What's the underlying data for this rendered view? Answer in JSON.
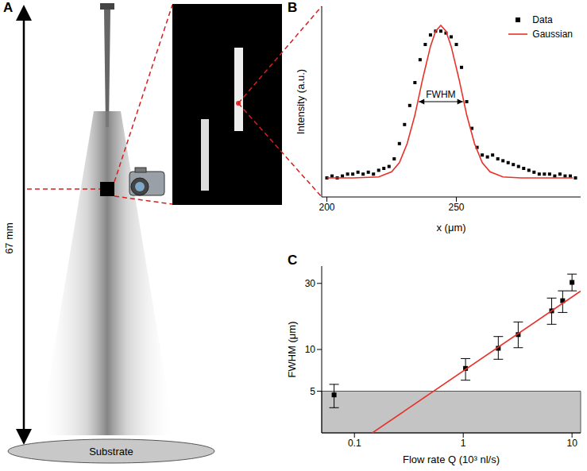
{
  "chart_data": [
    {
      "type": "diagram",
      "panel": "A",
      "annotations": [
        "67 mm",
        "Substrate"
      ]
    },
    {
      "type": "scatter",
      "panel": "B",
      "x_label": "x (μm)",
      "y_label": "Intensity (a.u.)",
      "xlim": [
        198,
        298
      ],
      "ylim": [
        0,
        1
      ],
      "xticks": [
        200,
        250
      ],
      "yticks": [
        0.2,
        0.4,
        0.6,
        0.8
      ],
      "tick_labels": "x",
      "legend": "upper right",
      "annotations": [
        {
          "text": "FWHM",
          "x": [
            235.5,
            252.5
          ],
          "y": 0.5
        }
      ],
      "series": [
        {
          "name": "Data",
          "type": "scatter",
          "marker": "square",
          "color": "#000000",
          "x": [
            200,
            202,
            204,
            206,
            208,
            210,
            212,
            214,
            216,
            218,
            220,
            222,
            224,
            226,
            228,
            230,
            232,
            234,
            236,
            238,
            240,
            242,
            244,
            246,
            248,
            250,
            252,
            254,
            256,
            258,
            260,
            262,
            264,
            266,
            268,
            270,
            272,
            274,
            276,
            278,
            280,
            282,
            284,
            286,
            288,
            290,
            292,
            294,
            296
          ],
          "values": [
            0.1,
            0.11,
            0.1,
            0.11,
            0.12,
            0.12,
            0.13,
            0.12,
            0.13,
            0.12,
            0.14,
            0.15,
            0.16,
            0.2,
            0.28,
            0.38,
            0.48,
            0.6,
            0.72,
            0.8,
            0.85,
            0.87,
            0.87,
            0.86,
            0.84,
            0.8,
            0.68,
            0.5,
            0.36,
            0.26,
            0.22,
            0.21,
            0.22,
            0.2,
            0.19,
            0.18,
            0.17,
            0.16,
            0.15,
            0.14,
            0.13,
            0.12,
            0.12,
            0.12,
            0.11,
            0.12,
            0.11,
            0.11,
            0.1
          ]
        },
        {
          "name": "Gaussian",
          "type": "line",
          "color": "#e8312a",
          "x": [
            200,
            210,
            220,
            225,
            228,
            231,
            234,
            237,
            240,
            242,
            244,
            246,
            248,
            251,
            254,
            257,
            260,
            263,
            268,
            275,
            285,
            295
          ],
          "values": [
            0.1,
            0.1,
            0.105,
            0.132,
            0.18,
            0.28,
            0.43,
            0.62,
            0.79,
            0.87,
            0.9,
            0.87,
            0.79,
            0.62,
            0.43,
            0.28,
            0.18,
            0.132,
            0.105,
            0.1,
            0.1,
            0.1
          ]
        }
      ]
    },
    {
      "type": "scatter",
      "panel": "C",
      "x_label": "Flow rate Q (10³ nl/s)",
      "y_label": "FWHM (μm)",
      "log": true,
      "xlim": [
        0.05,
        12
      ],
      "ylim": [
        2.5,
        40
      ],
      "xticks": [
        0.1,
        1,
        10
      ],
      "yticks": [
        5,
        10,
        30
      ],
      "shaded_region": {
        "y": [
          2.5,
          5
        ]
      },
      "series": [
        {
          "type": "scatter",
          "marker": "square",
          "color": "#000000",
          "x": [
            0.065,
            1.05,
            2.1,
            3.2,
            6.5,
            8.2,
            10
          ],
          "values": [
            4.7,
            7.3,
            10.2,
            12.8,
            19,
            22.5,
            30.5
          ],
          "error_minus": [
            0.9,
            1.3,
            1.7,
            2.5,
            3.8,
            4.0,
            4.0
          ],
          "error_plus": [
            0.9,
            1.3,
            2.2,
            3.0,
            4.5,
            4.0,
            4.5
          ]
        },
        {
          "type": "line",
          "color": "#e8312a",
          "x": [
            0.146,
            12
          ],
          "values": [
            2.5,
            26.4
          ]
        }
      ]
    }
  ]
}
